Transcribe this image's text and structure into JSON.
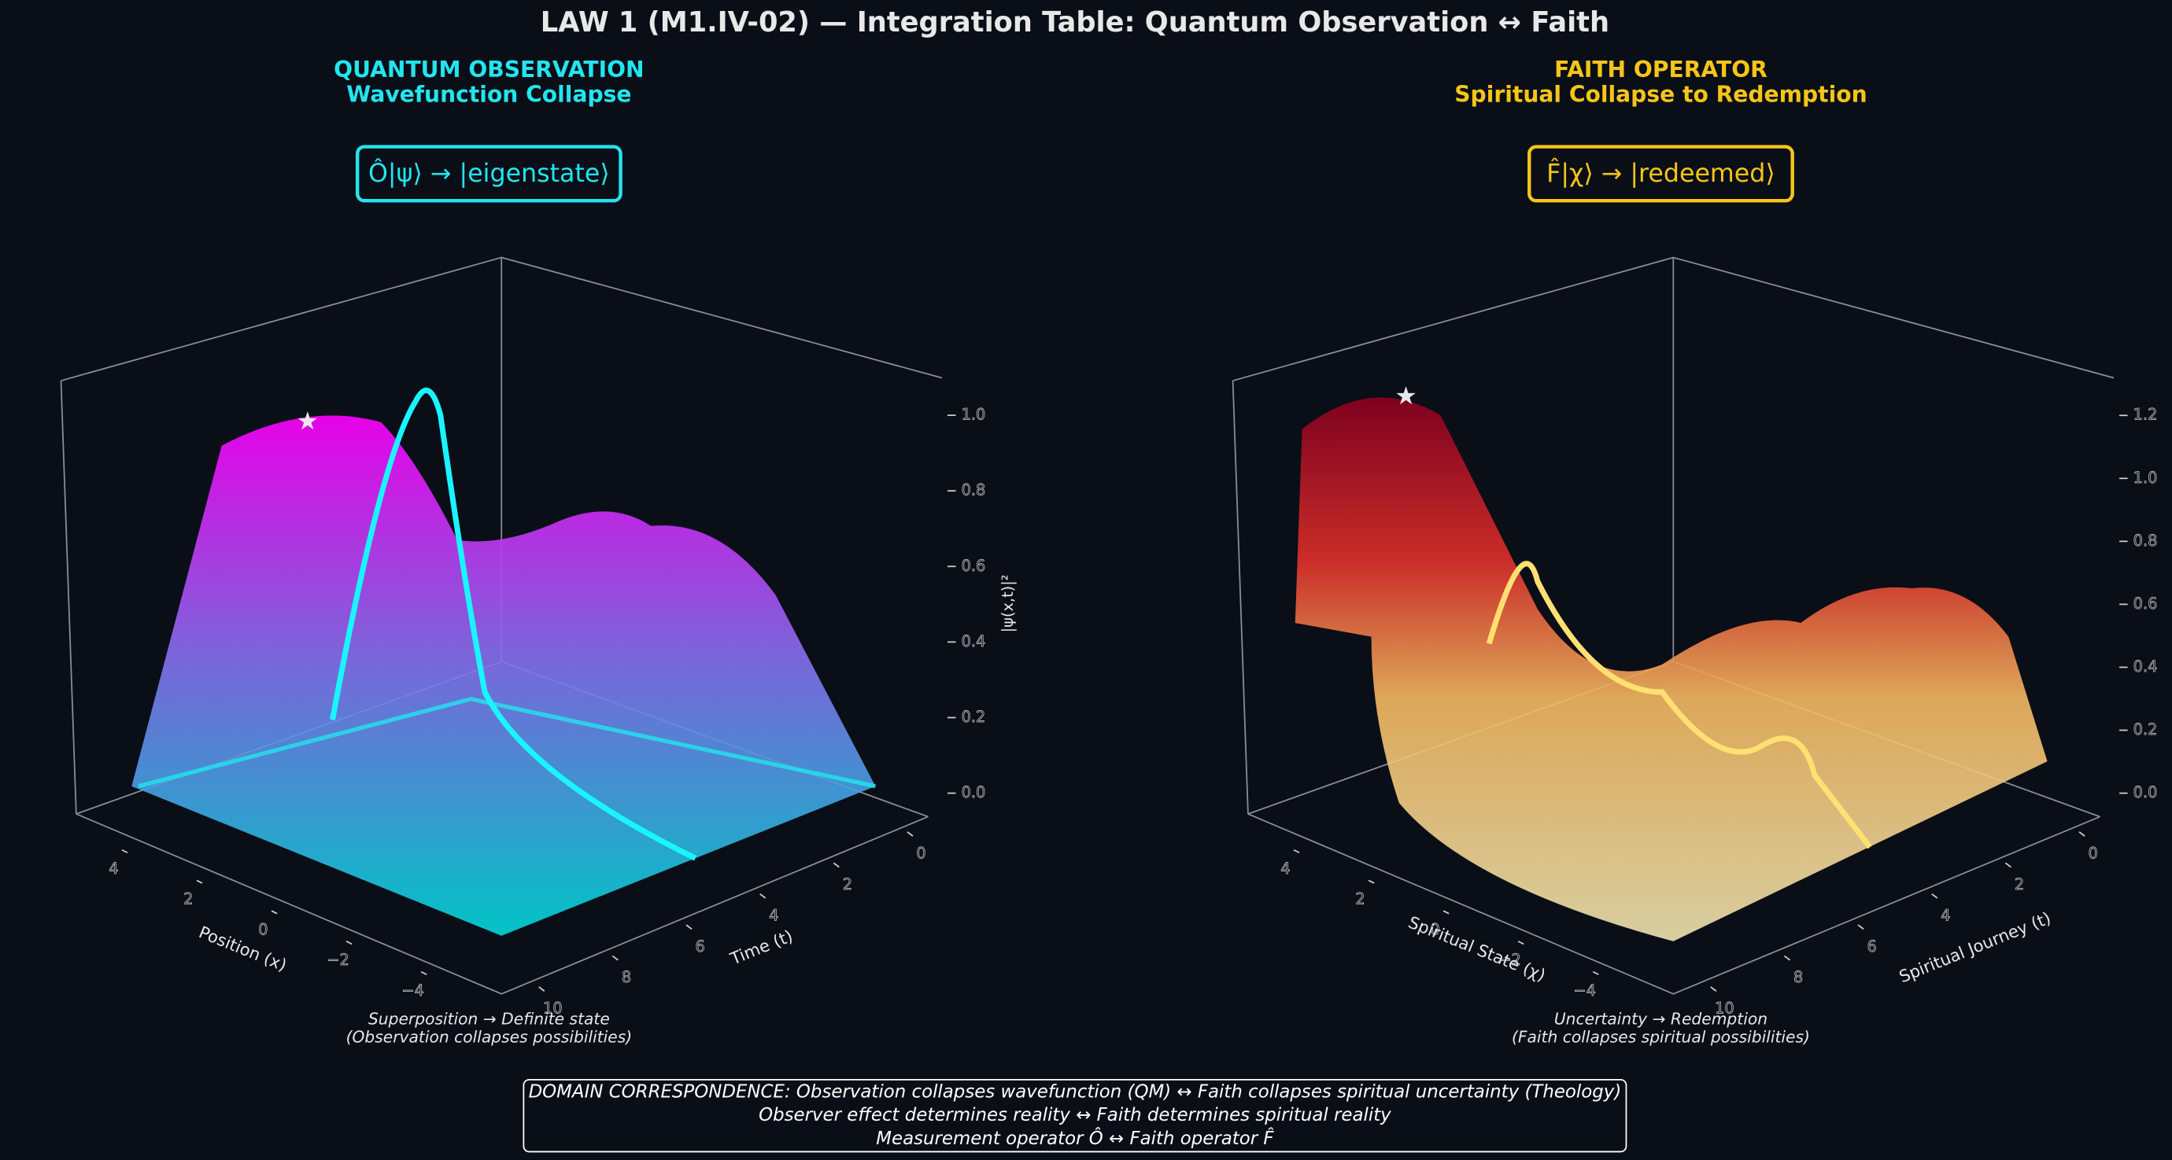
{
  "title": "LAW 1 (M1.IV-02) — Integration Table: Quantum Observation ↔ Faith",
  "chart_data": [
    {
      "type": "surface3d",
      "title": "QUANTUM OBSERVATION",
      "subtitle": "Wavefunction Collapse",
      "color": "#22e5ee",
      "equation": "Ô|ψ⟩ → |eigenstate⟩",
      "xlabel": "Position (x)",
      "ylabel": "Time (t)",
      "zlabel": "|ψ(x,t)|²",
      "xticks": [
        4,
        2,
        0,
        {
          "value": -2,
          "label": "−2"
        },
        {
          "value": -4,
          "label": "−4"
        }
      ],
      "yticks": [
        0,
        2,
        4,
        6,
        8,
        10
      ],
      "zticks": [
        {
          "value": 0,
          "label": "0.0"
        },
        0.2,
        0.4,
        0.6,
        0.8,
        {
          "value": 1,
          "label": "1.0"
        }
      ],
      "zlim": [
        0,
        1.0
      ],
      "caption": [
        "Superposition → Definite state",
        "(Observation collapses possibilities)"
      ]
    },
    {
      "type": "surface3d",
      "title": "FAITH OPERATOR",
      "subtitle": "Spiritual Collapse to Redemption",
      "color": "#f5c518",
      "equation": "F̂|χ⟩ → |redeemed⟩",
      "xlabel": "Spiritual State (χ)",
      "ylabel": "Spiritual Journey (t)",
      "xticks": [
        4,
        2,
        0,
        {
          "value": -2,
          "label": "−2"
        },
        {
          "value": -4,
          "label": "−4"
        }
      ],
      "yticks": [
        0,
        2,
        4,
        6,
        8,
        10
      ],
      "zticks": [
        {
          "value": 0,
          "label": "0.0"
        },
        0.2,
        0.4,
        0.6,
        0.8,
        {
          "value": 1,
          "label": "1.0"
        },
        1.2
      ],
      "zlim": [
        0,
        1.2
      ],
      "caption": [
        "Uncertainty → Redemption",
        "(Faith collapses spiritual possibilities)"
      ]
    }
  ],
  "footer": [
    "DOMAIN CORRESPONDENCE: Observation collapses wavefunction (QM) ↔ Faith collapses spiritual uncertainty (Theology)",
    "Observer effect determines reality ↔ Faith determines spiritual reality",
    "Measurement operator Ô ↔ Faith operator F̂"
  ]
}
